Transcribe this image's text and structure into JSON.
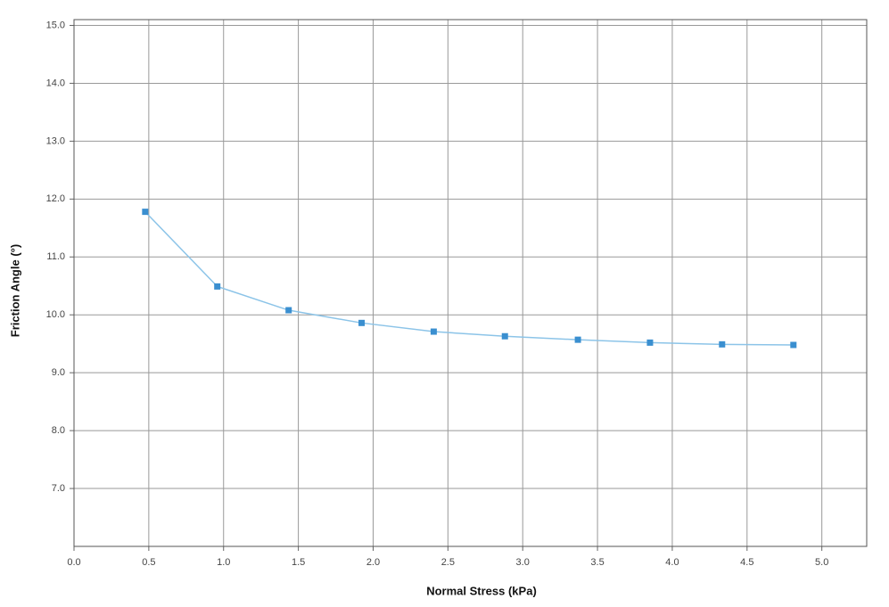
{
  "chart_data": {
    "type": "line",
    "x_label": "Normal Stress (kPa)",
    "y_label": "Friction Angle (°)",
    "series": [
      {
        "name": "Friction Angle",
        "color": "#3a8fd0",
        "x": [
          0.476,
          0.958,
          1.435,
          1.923,
          2.405,
          2.881,
          3.369,
          3.851,
          4.333,
          4.81
        ],
        "values": [
          11.78,
          10.49,
          10.08,
          9.86,
          9.71,
          9.63,
          9.57,
          9.52,
          9.49,
          9.48
        ]
      }
    ],
    "xlim": [
      0,
      5.3
    ],
    "xticks": [
      {
        "value": 0,
        "label": "0.0"
      },
      0.5,
      {
        "value": 1,
        "label": "1.0"
      },
      1.5,
      {
        "value": 2,
        "label": "2.0"
      },
      2.5,
      {
        "value": 3,
        "label": "3.0"
      },
      3.5,
      {
        "value": 4,
        "label": "4.0"
      },
      4.5,
      {
        "value": 5,
        "label": "5.0"
      }
    ],
    "ylim": [
      6,
      15.1
    ],
    "yticks": [
      {
        "value": 7,
        "label": "7.0"
      },
      {
        "value": 8,
        "label": "8.0"
      },
      {
        "value": 9,
        "label": "9.0"
      },
      {
        "value": 10,
        "label": "10.0"
      },
      {
        "value": 11,
        "label": "11.0"
      },
      {
        "value": 12,
        "label": "12.0"
      },
      {
        "value": 13,
        "label": "13.0"
      },
      {
        "value": 14,
        "label": "14.0"
      },
      {
        "value": 15,
        "label": "15.0"
      }
    ],
    "grid": true,
    "line_color": "#8cc4e8"
  }
}
